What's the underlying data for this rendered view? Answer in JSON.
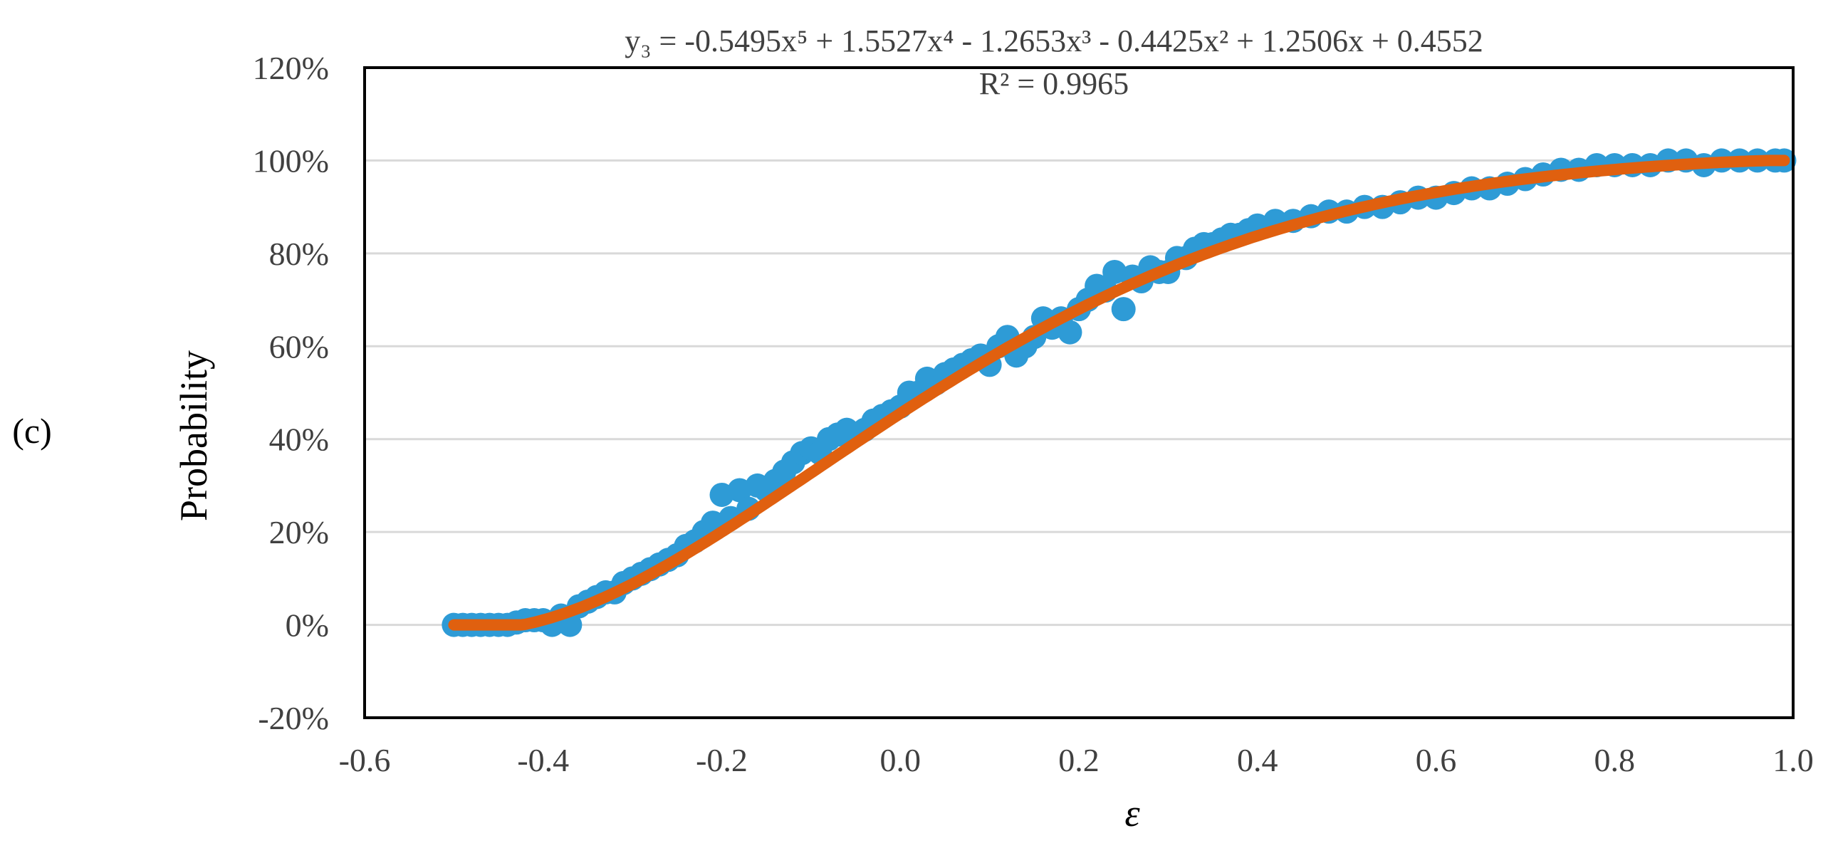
{
  "panel_label": "(c)",
  "chart_data": {
    "type": "scatter",
    "title": "",
    "xlabel": "ε",
    "ylabel": "Probability",
    "xlim": [
      -0.6,
      1.0
    ],
    "ylim": [
      -0.2,
      1.2
    ],
    "x_ticks": [
      -0.6,
      -0.4,
      -0.2,
      0.0,
      0.2,
      0.4,
      0.6,
      0.8,
      1.0
    ],
    "x_tick_labels": [
      "-0.6",
      "-0.4",
      "-0.2",
      "0.0",
      "0.2",
      "0.4",
      "0.6",
      "0.8",
      "1.0"
    ],
    "y_ticks": [
      -0.2,
      0.0,
      0.2,
      0.4,
      0.6,
      0.8,
      1.0,
      1.2
    ],
    "y_tick_labels": [
      "-20%",
      "0%",
      "20%",
      "40%",
      "60%",
      "80%",
      "100%",
      "120%"
    ],
    "grid": "horizontal",
    "legend": "none",
    "trendline": {
      "equation": "y₃ = -0.5495x⁵ + 1.5527x⁴ - 1.2653x³ - 0.4425x² + 1.2506x + 0.4552",
      "r_squared": "R² = 0.9965",
      "coefficients": [
        -0.5495,
        1.5527,
        -1.2653,
        -0.4425,
        1.2506,
        0.4552
      ],
      "x_range": [
        -0.5,
        0.99
      ],
      "color": "#E0600F"
    },
    "series": [
      {
        "color": "#2E9BD6",
        "x": [
          -0.5,
          -0.49,
          -0.48,
          -0.47,
          -0.46,
          -0.45,
          -0.44,
          -0.43,
          -0.42,
          -0.41,
          -0.4,
          -0.39,
          -0.38,
          -0.37,
          -0.36,
          -0.35,
          -0.34,
          -0.33,
          -0.32,
          -0.31,
          -0.3,
          -0.29,
          -0.28,
          -0.27,
          -0.26,
          -0.25,
          -0.24,
          -0.23,
          -0.22,
          -0.21,
          -0.2,
          -0.19,
          -0.18,
          -0.17,
          -0.16,
          -0.15,
          -0.14,
          -0.13,
          -0.12,
          -0.11,
          -0.1,
          -0.09,
          -0.08,
          -0.07,
          -0.06,
          -0.05,
          -0.04,
          -0.03,
          -0.02,
          -0.01,
          0.0,
          0.01,
          0.02,
          0.03,
          0.04,
          0.05,
          0.06,
          0.07,
          0.08,
          0.09,
          0.1,
          0.11,
          0.12,
          0.13,
          0.14,
          0.15,
          0.16,
          0.17,
          0.18,
          0.19,
          0.2,
          0.21,
          0.22,
          0.23,
          0.24,
          0.25,
          0.26,
          0.27,
          0.28,
          0.29,
          0.3,
          0.31,
          0.32,
          0.33,
          0.34,
          0.35,
          0.36,
          0.37,
          0.38,
          0.39,
          0.4,
          0.42,
          0.44,
          0.46,
          0.48,
          0.5,
          0.52,
          0.54,
          0.56,
          0.58,
          0.6,
          0.62,
          0.64,
          0.66,
          0.68,
          0.7,
          0.72,
          0.74,
          0.76,
          0.78,
          0.8,
          0.82,
          0.84,
          0.86,
          0.88,
          0.9,
          0.92,
          0.94,
          0.96,
          0.98,
          0.99
        ],
        "y": [
          0.0,
          0.0,
          0.0,
          0.0,
          0.0,
          0.0,
          0.0,
          0.005,
          0.01,
          0.01,
          0.01,
          0.0,
          0.02,
          0.0,
          0.04,
          0.05,
          0.06,
          0.07,
          0.07,
          0.09,
          0.1,
          0.11,
          0.12,
          0.13,
          0.14,
          0.15,
          0.17,
          0.18,
          0.2,
          0.22,
          0.28,
          0.23,
          0.29,
          0.25,
          0.3,
          0.29,
          0.31,
          0.33,
          0.35,
          0.37,
          0.38,
          0.37,
          0.4,
          0.41,
          0.42,
          0.41,
          0.42,
          0.44,
          0.45,
          0.46,
          0.47,
          0.5,
          0.5,
          0.53,
          0.52,
          0.54,
          0.55,
          0.56,
          0.57,
          0.58,
          0.56,
          0.6,
          0.62,
          0.58,
          0.6,
          0.62,
          0.66,
          0.64,
          0.66,
          0.63,
          0.68,
          0.7,
          0.73,
          0.72,
          0.76,
          0.68,
          0.75,
          0.74,
          0.77,
          0.76,
          0.76,
          0.79,
          0.79,
          0.81,
          0.82,
          0.82,
          0.83,
          0.84,
          0.84,
          0.85,
          0.86,
          0.87,
          0.87,
          0.88,
          0.89,
          0.89,
          0.9,
          0.9,
          0.91,
          0.92,
          0.92,
          0.93,
          0.94,
          0.94,
          0.95,
          0.96,
          0.97,
          0.98,
          0.98,
          0.99,
          0.99,
          0.99,
          0.99,
          1.0,
          1.0,
          0.99,
          1.0,
          1.0,
          1.0,
          1.0,
          1.0
        ]
      }
    ]
  }
}
